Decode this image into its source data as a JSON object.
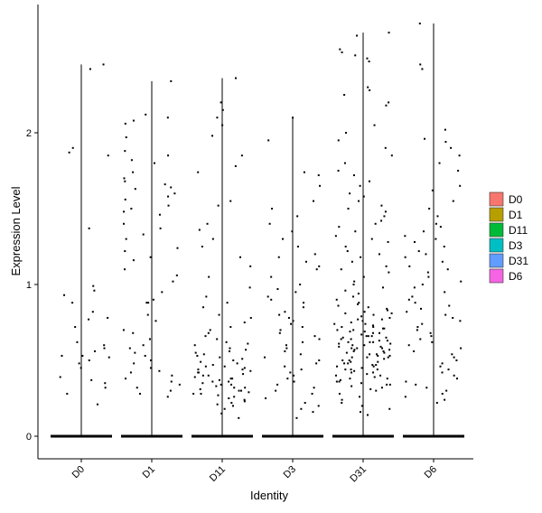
{
  "chart_data": {
    "type": "scatter",
    "subtype": "violin-jitter",
    "xlabel": "Identity",
    "ylabel": "Expression Level",
    "categories": [
      "D0",
      "D1",
      "D11",
      "D3",
      "D31",
      "D6"
    ],
    "ylim": [
      -0.15,
      2.85
    ],
    "yticks": [
      0,
      1,
      2
    ],
    "grid": false,
    "legend": {
      "placement": "right",
      "entries": [
        {
          "label": "D0",
          "color": "#F8766D"
        },
        {
          "label": "D1",
          "color": "#B79F00"
        },
        {
          "label": "D11",
          "color": "#00BA38"
        },
        {
          "label": "D3",
          "color": "#00BFC4"
        },
        {
          "label": "D31",
          "color": "#619CFF"
        },
        {
          "label": "D6",
          "color": "#F564E3"
        }
      ]
    },
    "series": [
      {
        "name": "D0",
        "max": 2.45,
        "n_zero": 300,
        "points": [
          2.45,
          2.42,
          1.9,
          1.87,
          1.85,
          1.37,
          0.99,
          0.96,
          0.93,
          0.88,
          0.82,
          0.78,
          0.77,
          0.72,
          0.62,
          0.6,
          0.58,
          0.56,
          0.53,
          0.53,
          0.52,
          0.5,
          0.48,
          0.45,
          0.39,
          0.37,
          0.35,
          0.32,
          0.28,
          0.21
        ]
      },
      {
        "name": "D1",
        "max": 2.34,
        "n_zero": 300,
        "points": [
          2.34,
          2.12,
          2.1,
          2.08,
          2.06,
          1.97,
          1.88,
          1.85,
          1.82,
          1.8,
          1.74,
          1.7,
          1.68,
          1.66,
          1.64,
          1.63,
          1.6,
          1.58,
          1.56,
          1.52,
          1.5,
          1.48,
          1.46,
          1.4,
          1.37,
          1.33,
          1.3,
          1.24,
          1.22,
          1.18,
          1.16,
          1.1,
          1.06,
          1.02,
          0.95,
          0.9,
          0.88,
          0.88,
          0.8,
          0.76,
          0.7,
          0.68,
          0.64,
          0.6,
          0.58,
          0.55,
          0.53,
          0.5,
          0.48,
          0.45,
          0.43,
          0.42,
          0.4,
          0.38,
          0.36,
          0.34,
          0.32,
          0.3,
          0.28,
          0.26
        ]
      },
      {
        "name": "D11",
        "max": 2.36,
        "n_zero": 300,
        "points": [
          2.36,
          2.2,
          2.15,
          2.1,
          2.05,
          1.98,
          1.85,
          1.78,
          1.74,
          1.55,
          1.52,
          1.4,
          1.36,
          1.3,
          1.25,
          1.18,
          1.12,
          1.05,
          0.98,
          0.92,
          0.88,
          0.85,
          0.8,
          0.78,
          0.75,
          0.72,
          0.7,
          0.68,
          0.66,
          0.64,
          0.62,
          0.61,
          0.6,
          0.58,
          0.57,
          0.56,
          0.55,
          0.54,
          0.53,
          0.52,
          0.51,
          0.5,
          0.49,
          0.48,
          0.47,
          0.46,
          0.46,
          0.45,
          0.44,
          0.44,
          0.43,
          0.42,
          0.42,
          0.41,
          0.4,
          0.4,
          0.39,
          0.38,
          0.38,
          0.37,
          0.36,
          0.36,
          0.35,
          0.34,
          0.34,
          0.33,
          0.32,
          0.32,
          0.31,
          0.3,
          0.3,
          0.29,
          0.28,
          0.28,
          0.27,
          0.26,
          0.25,
          0.24,
          0.23,
          0.22,
          0.21,
          0.2,
          0.18,
          0.15,
          0.12
        ]
      },
      {
        "name": "D3",
        "max": 2.1,
        "n_zero": 300,
        "points": [
          2.1,
          1.95,
          1.74,
          1.72,
          1.65,
          1.55,
          1.5,
          1.45,
          1.4,
          1.35,
          1.3,
          1.25,
          1.2,
          1.18,
          1.15,
          1.12,
          1.1,
          1.05,
          1.0,
          0.97,
          0.95,
          0.92,
          0.9,
          0.88,
          0.85,
          0.82,
          0.8,
          0.78,
          0.76,
          0.74,
          0.72,
          0.7,
          0.68,
          0.66,
          0.64,
          0.62,
          0.6,
          0.58,
          0.56,
          0.54,
          0.52,
          0.5,
          0.48,
          0.46,
          0.44,
          0.42,
          0.4,
          0.38,
          0.36,
          0.34,
          0.32,
          0.3,
          0.28,
          0.25,
          0.22,
          0.2,
          0.18,
          0.16,
          0.12
        ]
      },
      {
        "name": "D31",
        "max": 2.66,
        "n_zero": 300,
        "points": [
          2.66,
          2.64,
          2.55,
          2.53,
          2.51,
          2.49,
          2.47,
          2.3,
          2.28,
          2.25,
          2.2,
          2.18,
          2.05,
          2.0,
          1.95,
          1.9,
          1.85,
          1.8,
          1.75,
          1.72,
          1.68,
          1.65,
          1.6,
          1.58,
          1.55,
          1.52,
          1.5,
          1.48,
          1.45,
          1.42,
          1.4,
          1.38,
          1.35,
          1.32,
          1.3,
          1.28,
          1.25,
          1.22,
          1.2,
          1.18,
          1.15,
          1.12,
          1.1,
          1.08,
          1.05,
          1.02,
          1.0,
          0.98,
          0.96,
          0.94,
          0.92,
          0.9,
          0.88,
          0.87,
          0.86,
          0.85,
          0.84,
          0.83,
          0.82,
          0.81,
          0.8,
          0.79,
          0.78,
          0.77,
          0.76,
          0.75,
          0.74,
          0.73,
          0.72,
          0.71,
          0.7,
          0.7,
          0.69,
          0.68,
          0.68,
          0.67,
          0.66,
          0.66,
          0.65,
          0.64,
          0.64,
          0.63,
          0.62,
          0.62,
          0.61,
          0.6,
          0.6,
          0.59,
          0.58,
          0.58,
          0.57,
          0.56,
          0.56,
          0.55,
          0.54,
          0.54,
          0.53,
          0.52,
          0.52,
          0.51,
          0.5,
          0.5,
          0.49,
          0.48,
          0.48,
          0.47,
          0.46,
          0.46,
          0.45,
          0.44,
          0.44,
          0.43,
          0.42,
          0.42,
          0.41,
          0.4,
          0.4,
          0.39,
          0.38,
          0.38,
          0.37,
          0.36,
          0.36,
          0.35,
          0.34,
          0.34,
          0.33,
          0.32,
          0.31,
          0.3,
          0.28,
          0.26,
          0.24,
          0.22,
          0.2,
          0.18,
          0.16,
          0.14,
          0.65,
          0.72,
          0.58,
          0.49,
          0.81,
          0.63,
          0.55,
          0.69,
          0.77,
          0.44,
          0.52,
          0.61,
          0.57,
          0.66,
          0.74,
          0.47,
          0.53,
          0.59,
          0.71,
          0.62
        ]
      },
      {
        "name": "D6",
        "max": 2.72,
        "n_zero": 300,
        "points": [
          2.72,
          2.45,
          2.42,
          2.02,
          1.96,
          1.94,
          1.9,
          1.85,
          1.8,
          1.75,
          1.65,
          1.62,
          1.55,
          1.5,
          1.45,
          1.4,
          1.38,
          1.35,
          1.32,
          1.3,
          1.28,
          1.25,
          1.22,
          1.2,
          1.18,
          1.15,
          1.12,
          1.1,
          1.08,
          1.05,
          1.02,
          1.0,
          0.98,
          0.95,
          0.92,
          0.9,
          0.88,
          0.86,
          0.84,
          0.82,
          0.8,
          0.78,
          0.76,
          0.74,
          0.72,
          0.7,
          0.68,
          0.66,
          0.64,
          0.62,
          0.6,
          0.58,
          0.56,
          0.54,
          0.52,
          0.5,
          0.48,
          0.46,
          0.44,
          0.42,
          0.4,
          0.38,
          0.36,
          0.34,
          0.32,
          0.3,
          0.28,
          0.26,
          0.24,
          0.22
        ]
      }
    ]
  }
}
